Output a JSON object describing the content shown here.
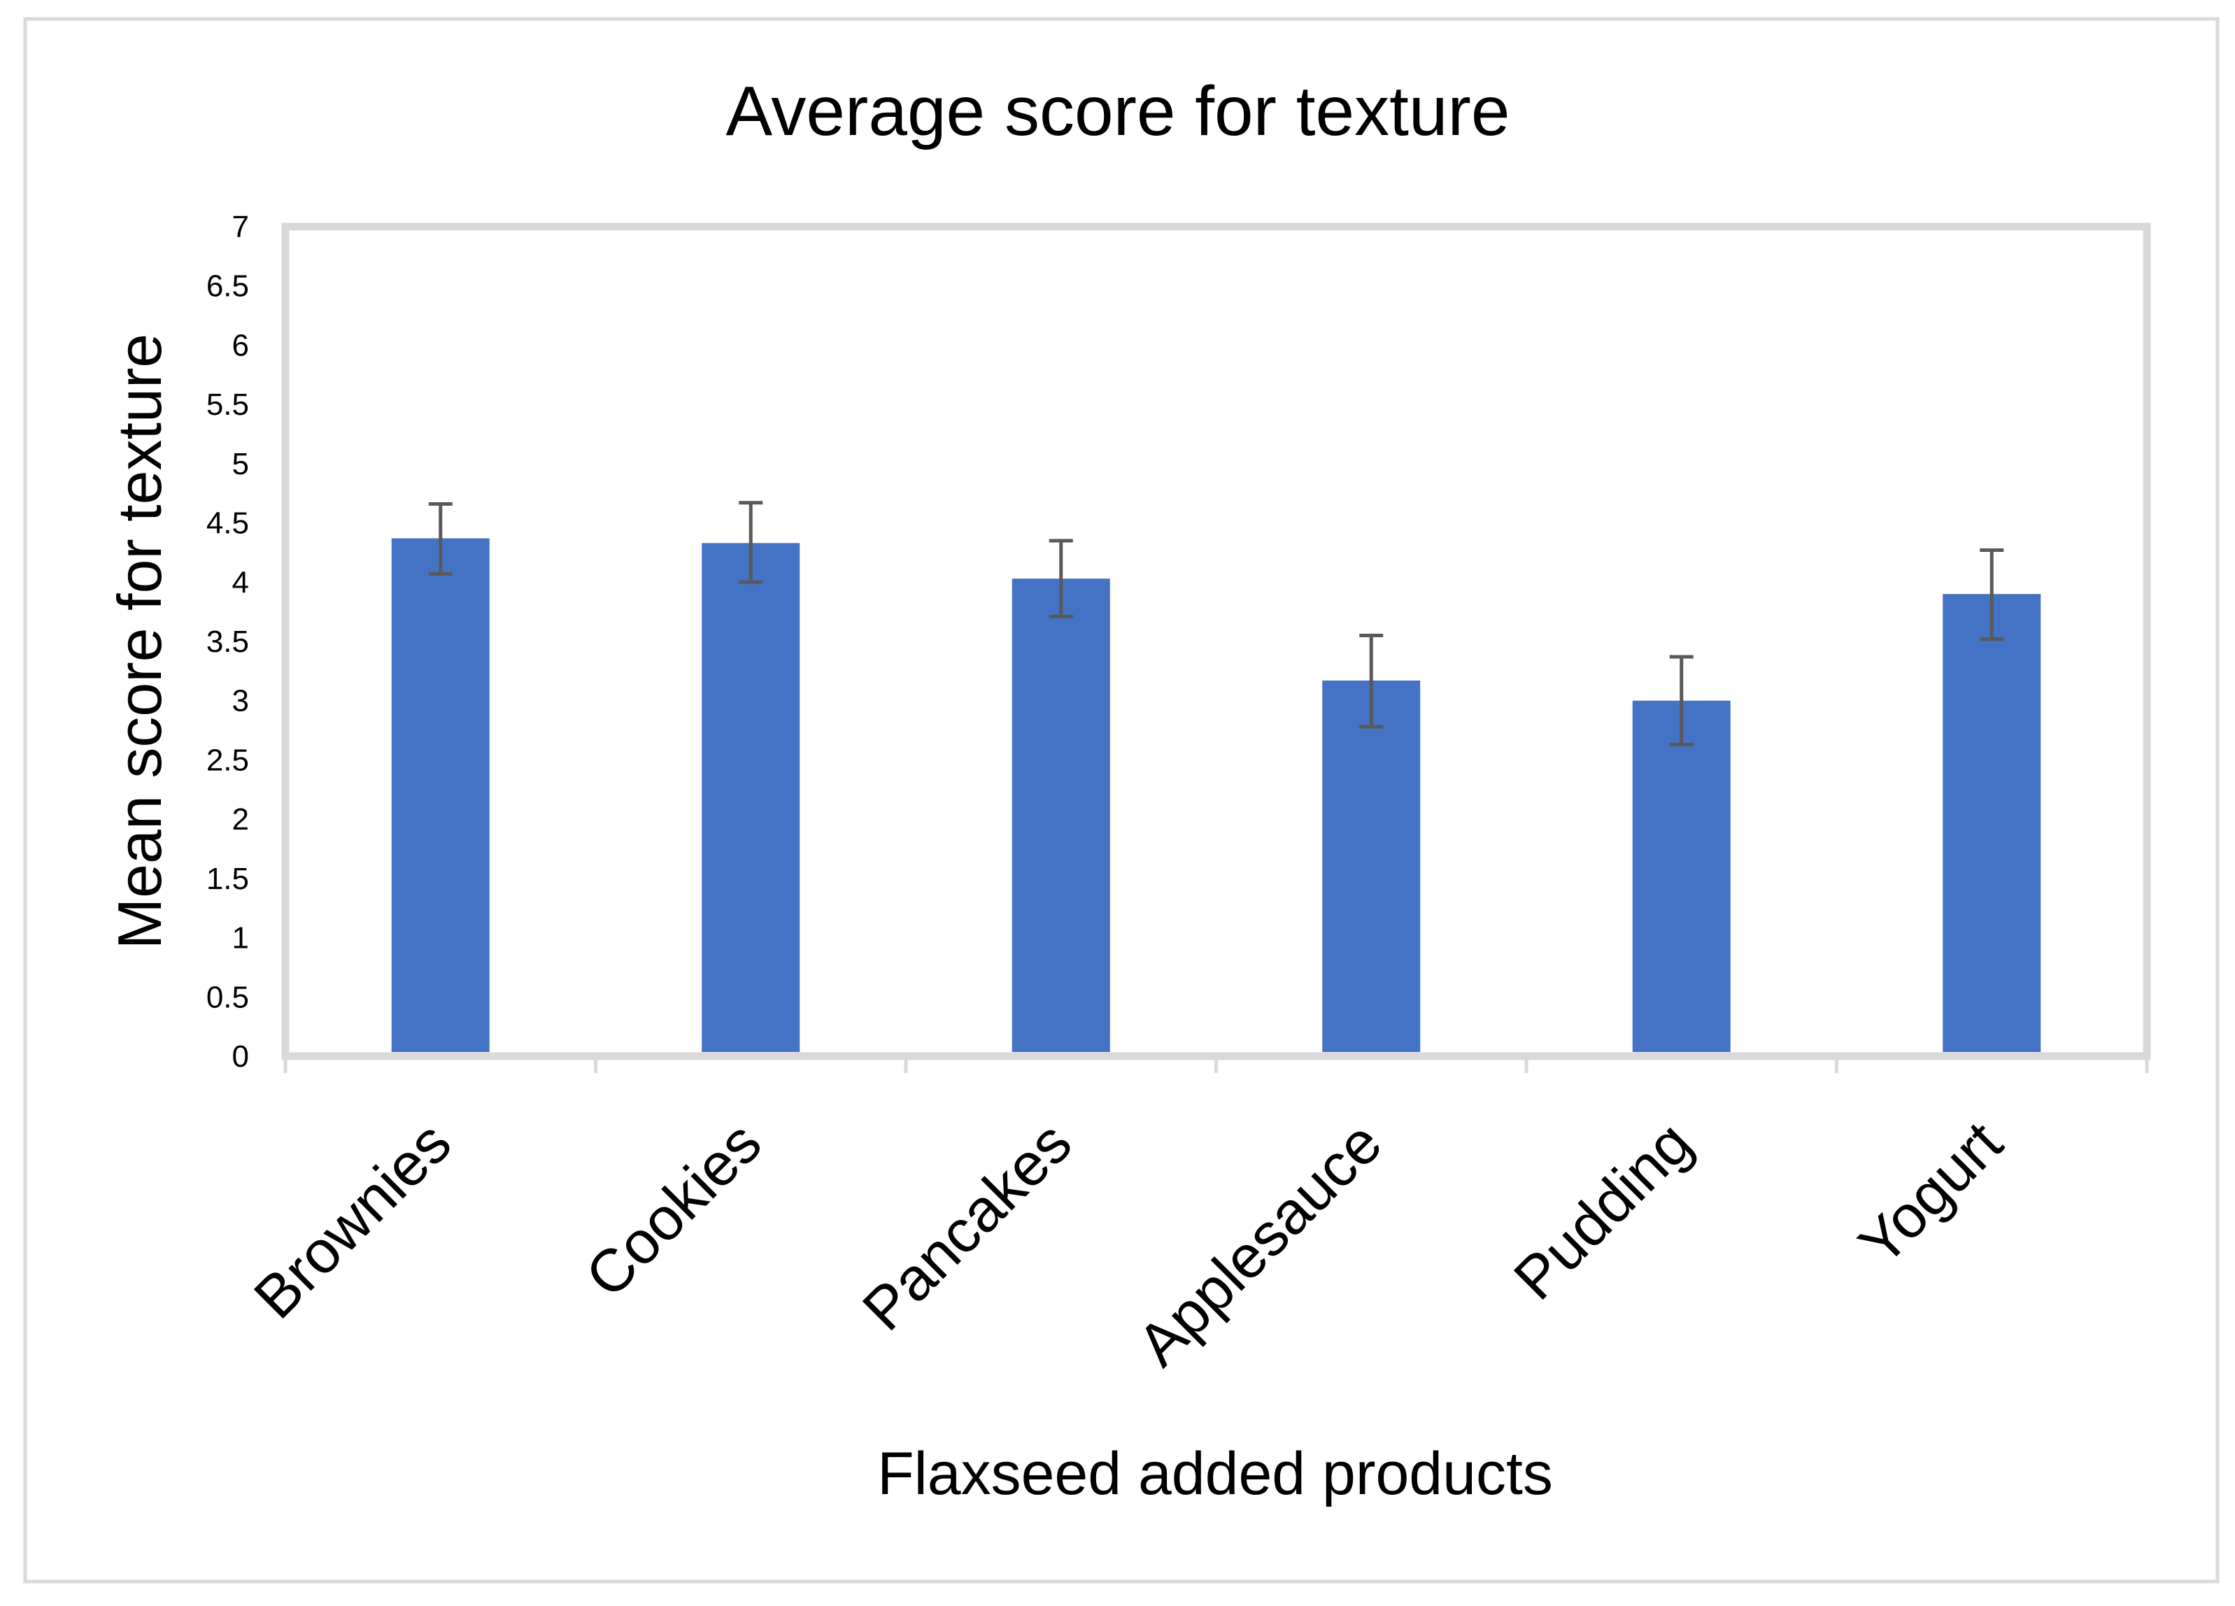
{
  "chart_data": {
    "type": "bar",
    "title": "Average score for texture",
    "xlabel": "Flaxseed added products",
    "ylabel": "Mean score for texture",
    "categories": [
      "Brownies",
      "Cookies",
      "Pancakes",
      "Applesauce",
      "Pudding",
      "Yogurt"
    ],
    "values": [
      4.37,
      4.33,
      4.03,
      3.17,
      3.0,
      3.9
    ],
    "error_bars": [
      [
        4.07,
        4.66
      ],
      [
        4.0,
        4.67
      ],
      [
        3.71,
        4.35
      ],
      [
        2.78,
        3.55
      ],
      [
        2.63,
        3.37
      ],
      [
        3.52,
        4.27
      ]
    ],
    "ylim": [
      0,
      7
    ],
    "yticks": [
      "0",
      "0.5",
      "1",
      "1.5",
      "2",
      "2.5",
      "3",
      "3.5",
      "4",
      "4.5",
      "5",
      "5.5",
      "6",
      "6.5",
      "7"
    ],
    "grid": false,
    "legend": "none",
    "colors": {
      "bar": "#4472C4",
      "error_bar": "#595959",
      "frame": "#D9D9D9",
      "outer_border": "#D9D9D9",
      "text": "#000000"
    }
  }
}
